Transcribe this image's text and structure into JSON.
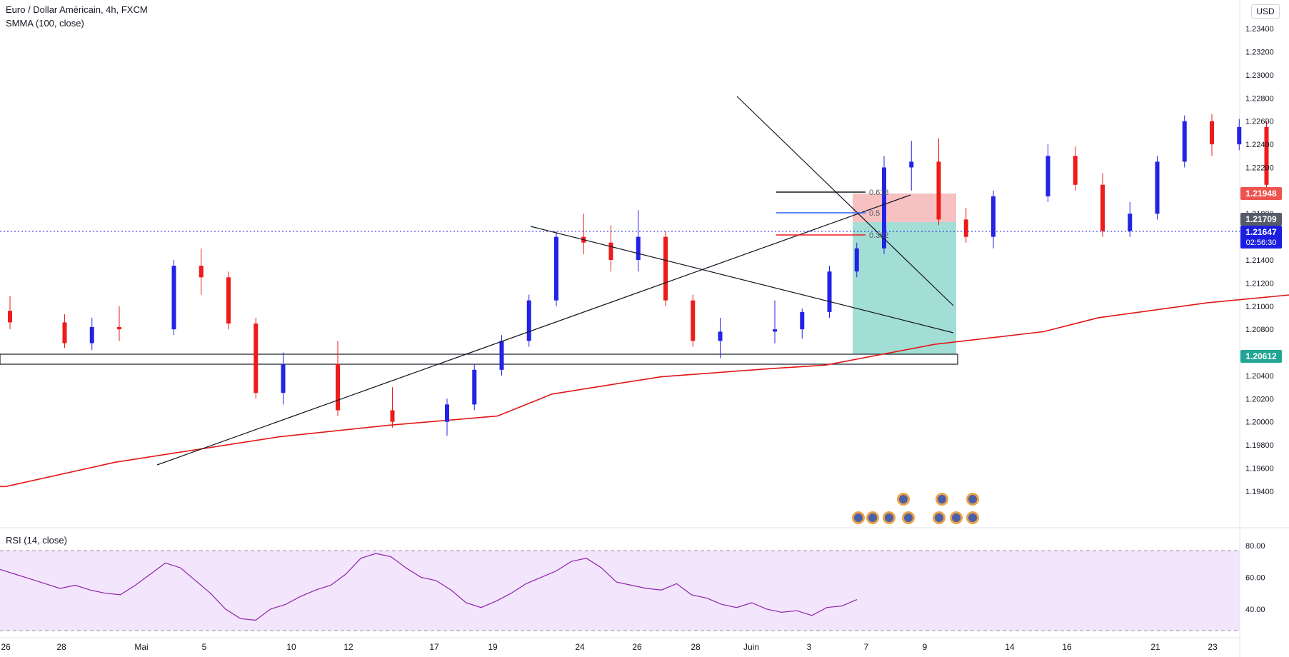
{
  "header": {
    "symbol": "Euro / Dollar Américain, 4h, FXCM",
    "indicator": "SMMA (100, close)",
    "rsi_label": "RSI (14, close)",
    "currency": "USD"
  },
  "colors": {
    "bull": "#2323e6",
    "bear": "#ee1b1b",
    "smma": "#e01616",
    "rsi_line": "#8e24aa",
    "rsi_band": "#f3e5fc",
    "stop_zone": "#f7c1c1",
    "target_zone": "#a3ded6",
    "price_tag_current": "#1d1fe0",
    "price_tag_stop": "#ef5350",
    "price_tag_target": "#22a594",
    "price_tag_entry": "#555b68"
  },
  "chart_data": [
    {
      "type": "candlestick",
      "title": "Euro / Dollar Américain, 4h, FXCM",
      "x_axis": {
        "type": "date",
        "ticks": [
          "26",
          "28",
          "Mai",
          "5",
          "10",
          "12",
          "17",
          "19",
          "24",
          "26",
          "28",
          "Juin",
          "3",
          "7",
          "9",
          "14",
          "16",
          "21",
          "23"
        ]
      },
      "y_axis": {
        "range": [
          1.193,
          1.235
        ],
        "ticks": [
          "1.23400",
          "1.23200",
          "1.23000",
          "1.22800",
          "1.22600",
          "1.22400",
          "1.22200",
          "1.22000",
          "1.21800",
          "1.21600",
          "1.21400",
          "1.21200",
          "1.21000",
          "1.20800",
          "1.20600",
          "1.20400",
          "1.20200",
          "1.20000",
          "1.19800",
          "1.19600",
          "1.19400"
        ]
      },
      "price_tags": {
        "stop": "1.21948",
        "entry": "1.21709",
        "current": "1.21647",
        "countdown": "02:56:30",
        "target": "1.20612"
      },
      "fibonacci_levels": [
        "0.618",
        "0.5",
        "0.382"
      ],
      "series": [
        {
          "name": "SMMA (100, close)",
          "points": [
            [
              "2021-04-26",
              1.1944
            ],
            [
              "2021-04-28",
              1.1965
            ],
            [
              "2021-05-03",
              1.1987
            ],
            [
              "2021-05-05",
              1.1997
            ],
            [
              "2021-05-07",
              1.2005
            ],
            [
              "2021-05-10",
              1.2024
            ],
            [
              "2021-05-12",
              1.2039
            ],
            [
              "2021-05-14",
              1.2046
            ],
            [
              "2021-05-17",
              1.2049
            ],
            [
              "2021-05-19",
              1.2067
            ],
            [
              "2021-05-21",
              1.2078
            ],
            [
              "2021-05-24",
              1.209
            ],
            [
              "2021-05-26",
              1.2103
            ],
            [
              "2021-05-28",
              1.2112
            ],
            [
              "2021-06-01",
              1.2119
            ],
            [
              "2021-06-03",
              1.2126
            ],
            [
              "2021-06-04",
              1.2129
            ]
          ]
        },
        {
          "name": "EUR/USD 4h",
          "candles": [
            [
              "2021-04-26",
              1.2096,
              1.2109,
              1.208,
              1.2086
            ],
            [
              "2021-04-27",
              1.2086,
              1.2093,
              1.2064,
              1.2068
            ],
            [
              "2021-04-27 12:00",
              1.2068,
              1.209,
              1.2062,
              1.2082
            ],
            [
              "2021-04-28",
              1.2082,
              1.21,
              1.207,
              1.208
            ],
            [
              "2021-04-29",
              1.208,
              1.214,
              1.2075,
              1.2135
            ],
            [
              "2021-04-29 12:00",
              1.2135,
              1.215,
              1.211,
              1.2125
            ],
            [
              "2021-04-30",
              1.2125,
              1.213,
              1.208,
              1.2085
            ],
            [
              "2021-04-30 12:00",
              1.2085,
              1.209,
              1.202,
              1.2025
            ],
            [
              "2021-05-03",
              1.2025,
              1.206,
              1.2015,
              1.205
            ],
            [
              "2021-05-04",
              1.205,
              1.207,
              1.2005,
              1.201
            ],
            [
              "2021-05-05",
              1.201,
              1.203,
              1.1995,
              1.2
            ],
            [
              "2021-05-06",
              1.2,
              1.202,
              1.1988,
              1.2015
            ],
            [
              "2021-05-06 12:00",
              1.2015,
              1.205,
              1.201,
              1.2045
            ],
            [
              "2021-05-07",
              1.2045,
              1.2075,
              1.204,
              1.207
            ],
            [
              "2021-05-07 12:00",
              1.207,
              1.211,
              1.2065,
              1.2105
            ],
            [
              "2021-05-10",
              1.2105,
              1.2165,
              1.21,
              1.216
            ],
            [
              "2021-05-10 12:00",
              1.216,
              1.218,
              1.2145,
              1.2155
            ],
            [
              "2021-05-11",
              1.2155,
              1.217,
              1.213,
              1.214
            ],
            [
              "2021-05-11 12:00",
              1.214,
              1.2183,
              1.213,
              1.216
            ],
            [
              "2021-05-12",
              1.216,
              1.2165,
              1.21,
              1.2105
            ],
            [
              "2021-05-12 12:00",
              1.2105,
              1.211,
              1.2065,
              1.207
            ],
            [
              "2021-05-13",
              1.207,
              1.209,
              1.2055,
              1.2078
            ],
            [
              "2021-05-14",
              1.2078,
              1.2105,
              1.2068,
              1.208
            ],
            [
              "2021-05-14 12:00",
              1.208,
              1.2098,
              1.2072,
              1.2095
            ],
            [
              "2021-05-17",
              1.2095,
              1.2135,
              1.209,
              1.213
            ],
            [
              "2021-05-17 12:00",
              1.213,
              1.2155,
              1.2125,
              1.215
            ],
            [
              "2021-05-18",
              1.215,
              1.223,
              1.2145,
              1.222
            ],
            [
              "2021-05-18 12:00",
              1.222,
              1.2243,
              1.22,
              1.2225
            ],
            [
              "2021-05-19",
              1.2225,
              1.2245,
              1.217,
              1.2175
            ],
            [
              "2021-05-19 12:00",
              1.2175,
              1.2185,
              1.2155,
              1.216
            ],
            [
              "2021-05-20",
              1.216,
              1.22,
              1.215,
              1.2195
            ],
            [
              "2021-05-21",
              1.2195,
              1.224,
              1.219,
              1.223
            ],
            [
              "2021-05-21 12:00",
              1.223,
              1.2238,
              1.22,
              1.2205
            ],
            [
              "2021-05-24",
              1.2205,
              1.2215,
              1.216,
              1.2165
            ],
            [
              "2021-05-24 12:00",
              1.2165,
              1.219,
              1.216,
              1.218
            ],
            [
              "2021-05-25",
              1.218,
              1.223,
              1.2175,
              1.2225
            ],
            [
              "2021-05-25 12:00",
              1.2225,
              1.2265,
              1.222,
              1.226
            ],
            [
              "2021-05-26",
              1.226,
              1.2266,
              1.223,
              1.224
            ],
            [
              "2021-05-26 12:00",
              1.224,
              1.2262,
              1.2235,
              1.2255
            ],
            [
              "2021-05-27",
              1.2255,
              1.226,
              1.22,
              1.2205
            ],
            [
              "2021-05-27 12:00",
              1.2205,
              1.221,
              1.2175,
              1.2185
            ],
            [
              "2021-05-28",
              1.2185,
              1.2195,
              1.217,
              1.218
            ],
            [
              "2021-05-28 12:00",
              1.218,
              1.2195,
              1.2133,
              1.219
            ],
            [
              "2021-05-31",
              1.219,
              1.22,
              1.218,
              1.2195
            ],
            [
              "2021-06-01",
              1.2195,
              1.2235,
              1.219,
              1.223
            ],
            [
              "2021-06-01 12:00",
              1.223,
              1.2254,
              1.2215,
              1.222
            ],
            [
              "2021-06-02",
              1.222,
              1.2225,
              1.2175,
              1.218
            ],
            [
              "2021-06-02 12:00",
              1.218,
              1.2215,
              1.2175,
              1.221
            ],
            [
              "2021-06-03",
              1.221,
              1.2212,
              1.217,
              1.2175
            ],
            [
              "2021-06-03 12:00",
              1.2175,
              1.2178,
              1.212,
              1.2125
            ],
            [
              "2021-06-04",
              1.2125,
              1.213,
              1.2105,
              1.211
            ],
            [
              "2021-06-04 12:00",
              1.211,
              1.217,
              1.2105,
              1.2165
            ]
          ]
        }
      ],
      "trendlines": [
        {
          "from": [
            "2021-05-03",
            1.1973
          ],
          "to": [
            "2021-06-08",
            1.2193
          ]
        },
        {
          "from": [
            "2021-05-20",
            1.2167
          ],
          "to": [
            "2021-06-09",
            1.2082
          ]
        },
        {
          "from": [
            "2021-05-31",
            1.2278
          ],
          "to": [
            "2021-06-09",
            1.2104
          ]
        }
      ],
      "support_zone": [
        1.2056,
        1.2063
      ]
    },
    {
      "type": "line",
      "title": "RSI (14, close)",
      "y_axis": {
        "range": [
          22,
          84
        ],
        "ticks": [
          "80.00",
          "60.00",
          "40.00"
        ]
      },
      "band": [
        30,
        70
      ],
      "values": [
        65,
        62,
        59,
        56,
        53,
        55,
        52,
        50,
        49,
        55,
        62,
        69,
        66,
        58,
        50,
        40,
        34,
        33,
        40,
        43,
        48,
        52,
        55,
        62,
        72,
        75,
        73,
        66,
        60,
        58,
        52,
        44,
        41,
        45,
        50,
        56,
        60,
        64,
        70,
        72,
        66,
        57,
        55,
        53,
        52,
        56,
        49,
        47,
        43,
        41,
        44,
        40,
        38,
        39,
        36,
        41,
        42,
        46
      ]
    }
  ]
}
